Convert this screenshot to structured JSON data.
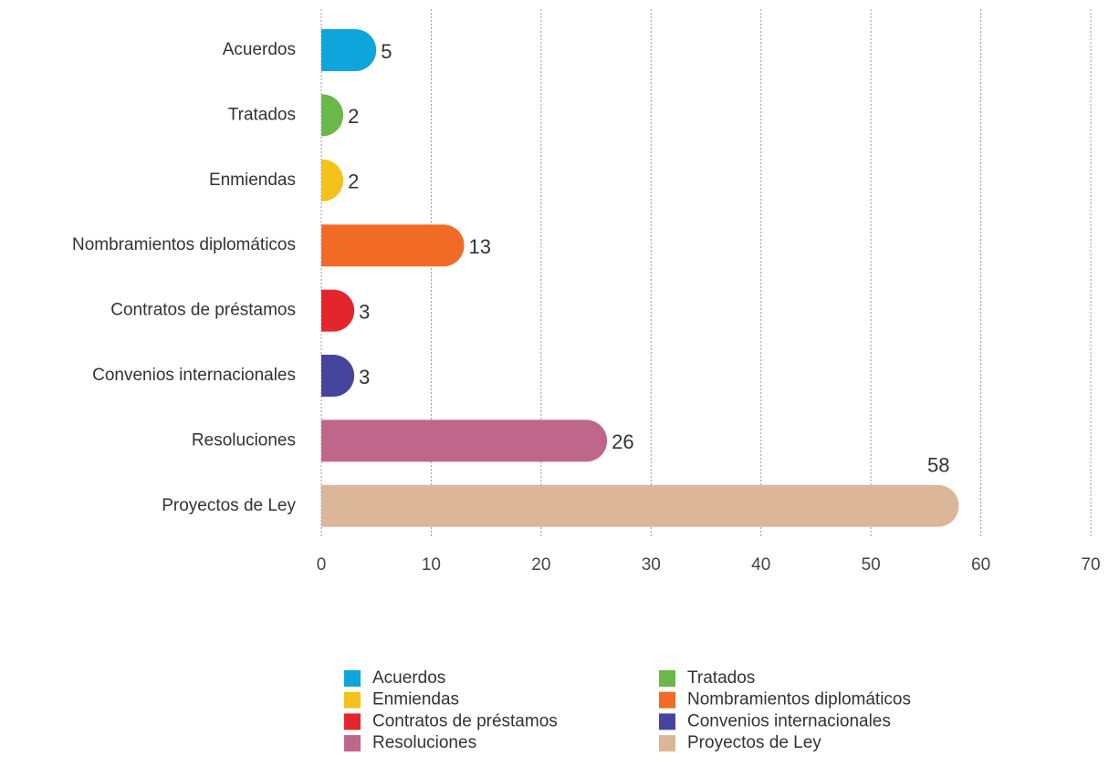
{
  "chart_data": {
    "type": "bar",
    "orientation": "horizontal",
    "categories": [
      "Acuerdos",
      "Tratados",
      "Enmiendas",
      "Nombramientos diplomáticos",
      "Contratos de préstamos",
      "Convenios internacionales",
      "Resoluciones",
      "Proyectos de Ley"
    ],
    "values": [
      5,
      2,
      2,
      13,
      3,
      3,
      26,
      58
    ],
    "colors": [
      "#0ea5dc",
      "#6ab74a",
      "#f5c11b",
      "#f26b26",
      "#e3262b",
      "#47449d",
      "#bf678b",
      "#dcb699"
    ],
    "xlim": [
      0,
      70
    ],
    "xticks": [
      0,
      10,
      20,
      30,
      40,
      50,
      60,
      70
    ],
    "grid": true,
    "legend": "bottom"
  }
}
